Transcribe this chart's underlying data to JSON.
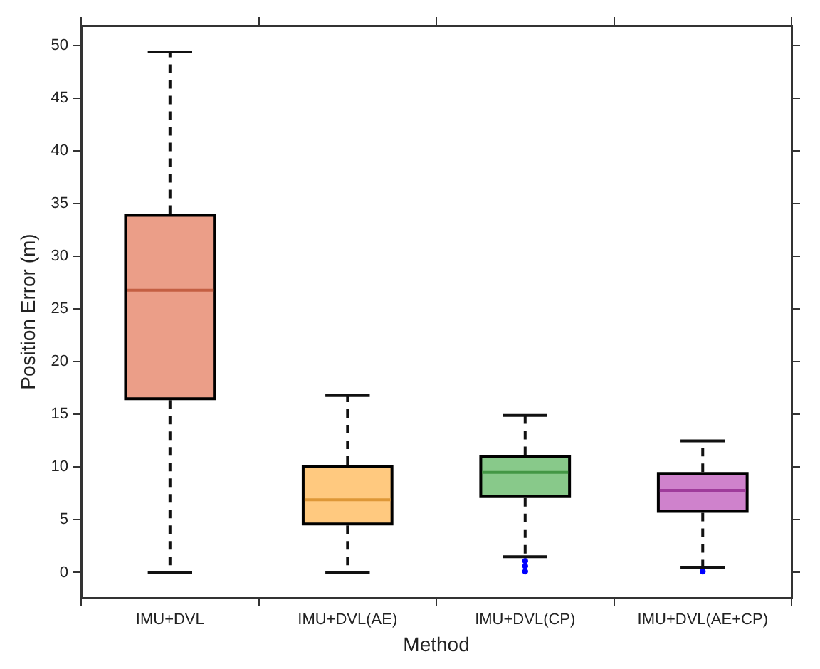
{
  "chart_data": {
    "type": "box",
    "xlabel": "Method",
    "ylabel": "Position Error (m)",
    "categories": [
      "IMU+DVL",
      "IMU+DVL(AE)",
      "IMU+DVL(CP)",
      "IMU+DVL(AE+CP)"
    ],
    "ylim": [
      -2.4,
      51.9
    ],
    "yticks": [
      0,
      5,
      10,
      15,
      20,
      25,
      30,
      35,
      40,
      45,
      50
    ],
    "grid": false,
    "legend": false,
    "series": [
      {
        "type": "box",
        "colors": [
          "#eb9e88",
          "#ffc97f",
          "#88c98a",
          "#cf82cc"
        ],
        "boxes": [
          {
            "low": 0,
            "q1": 16.5,
            "median": 26.8,
            "q3": 33.9,
            "high": 49.4
          },
          {
            "low": 0,
            "q1": 4.6,
            "median": 6.9,
            "q3": 10.1,
            "high": 16.8
          },
          {
            "low": 1.5,
            "q1": 7.2,
            "median": 9.5,
            "q3": 11.0,
            "high": 14.9
          },
          {
            "low": 0.5,
            "q1": 5.8,
            "median": 7.8,
            "q3": 9.4,
            "high": 12.5
          }
        ]
      },
      {
        "type": "scatter",
        "color": "#0000ff",
        "x": [
          "IMU+DVL(CP)",
          "IMU+DVL(CP)",
          "IMU+DVL(CP)",
          "IMU+DVL(AE+CP)"
        ],
        "values": [
          0.1,
          0.6,
          1.1,
          0.1
        ]
      }
    ]
  }
}
